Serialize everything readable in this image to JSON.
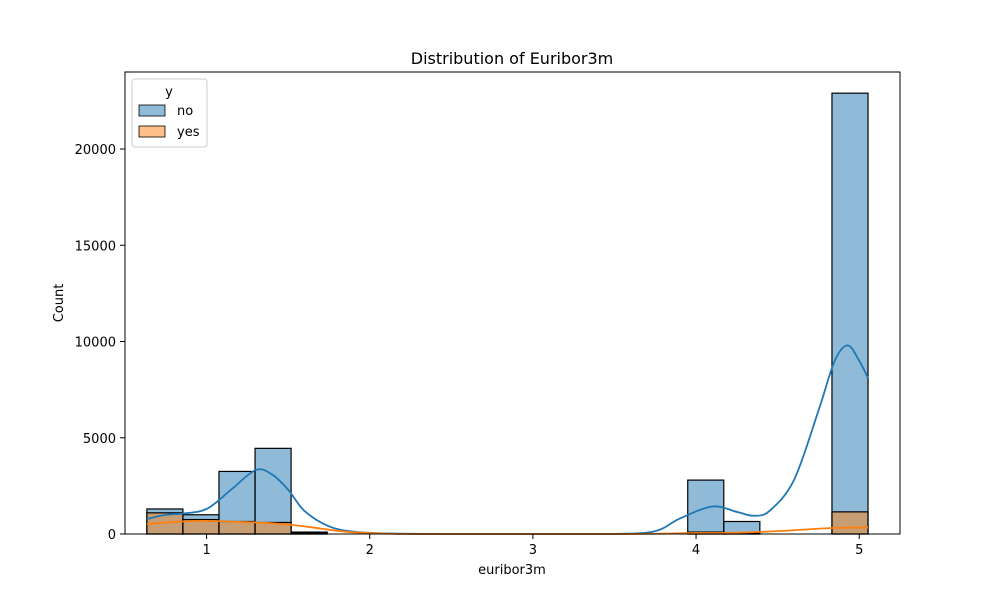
{
  "chart_data": {
    "type": "bar",
    "title": "Distribution of Euribor3m",
    "xlabel": "euribor3m",
    "ylabel": "Count",
    "xlim": [
      0.5,
      5.25
    ],
    "ylim": [
      0,
      24000
    ],
    "x_ticks": [
      1,
      2,
      3,
      4,
      5
    ],
    "y_ticks": [
      0,
      5000,
      10000,
      15000,
      20000
    ],
    "grid": false,
    "legend": {
      "title": "y",
      "placement": "top-left"
    },
    "bin_edges": [
      0.634,
      0.855,
      1.076,
      1.297,
      1.518,
      1.739,
      1.96,
      2.181,
      2.402,
      2.623,
      2.844,
      3.065,
      3.286,
      3.507,
      3.728,
      3.949,
      4.17,
      4.391,
      4.612,
      4.833,
      5.054
    ],
    "series": [
      {
        "name": "no",
        "color": "#1f77b4",
        "values": [
          1300,
          1000,
          3250,
          4450,
          100,
          0,
          0,
          0,
          0,
          0,
          0,
          0,
          0,
          0,
          0,
          2800,
          650,
          0,
          0,
          22900
        ],
        "kde": [
          [
            0.634,
            780
          ],
          [
            0.75,
            1000
          ],
          [
            0.85,
            1060
          ],
          [
            1.0,
            1300
          ],
          [
            1.15,
            2300
          ],
          [
            1.3,
            3320
          ],
          [
            1.4,
            3100
          ],
          [
            1.5,
            2300
          ],
          [
            1.6,
            1200
          ],
          [
            1.75,
            400
          ],
          [
            1.9,
            120
          ],
          [
            2.1,
            30
          ],
          [
            2.5,
            0
          ],
          [
            3.0,
            0
          ],
          [
            3.5,
            0
          ],
          [
            3.75,
            150
          ],
          [
            3.9,
            800
          ],
          [
            4.1,
            1430
          ],
          [
            4.25,
            1150
          ],
          [
            4.35,
            950
          ],
          [
            4.45,
            1200
          ],
          [
            4.6,
            2800
          ],
          [
            4.75,
            6400
          ],
          [
            4.85,
            9000
          ],
          [
            4.93,
            9800
          ],
          [
            5.0,
            9000
          ],
          [
            5.054,
            8100
          ]
        ]
      },
      {
        "name": "yes",
        "color": "#ff7f0e",
        "values": [
          1100,
          750,
          650,
          600,
          60,
          0,
          0,
          0,
          0,
          0,
          0,
          0,
          0,
          0,
          0,
          100,
          60,
          0,
          0,
          1150
        ],
        "kde": [
          [
            0.634,
            520
          ],
          [
            0.85,
            650
          ],
          [
            1.0,
            680
          ],
          [
            1.2,
            630
          ],
          [
            1.4,
            560
          ],
          [
            1.55,
            450
          ],
          [
            1.7,
            280
          ],
          [
            1.85,
            120
          ],
          [
            2.0,
            50
          ],
          [
            2.3,
            0
          ],
          [
            3.5,
            0
          ],
          [
            3.8,
            20
          ],
          [
            4.0,
            50
          ],
          [
            4.2,
            60
          ],
          [
            4.5,
            150
          ],
          [
            4.8,
            300
          ],
          [
            4.95,
            330
          ],
          [
            5.054,
            340
          ]
        ]
      }
    ]
  }
}
